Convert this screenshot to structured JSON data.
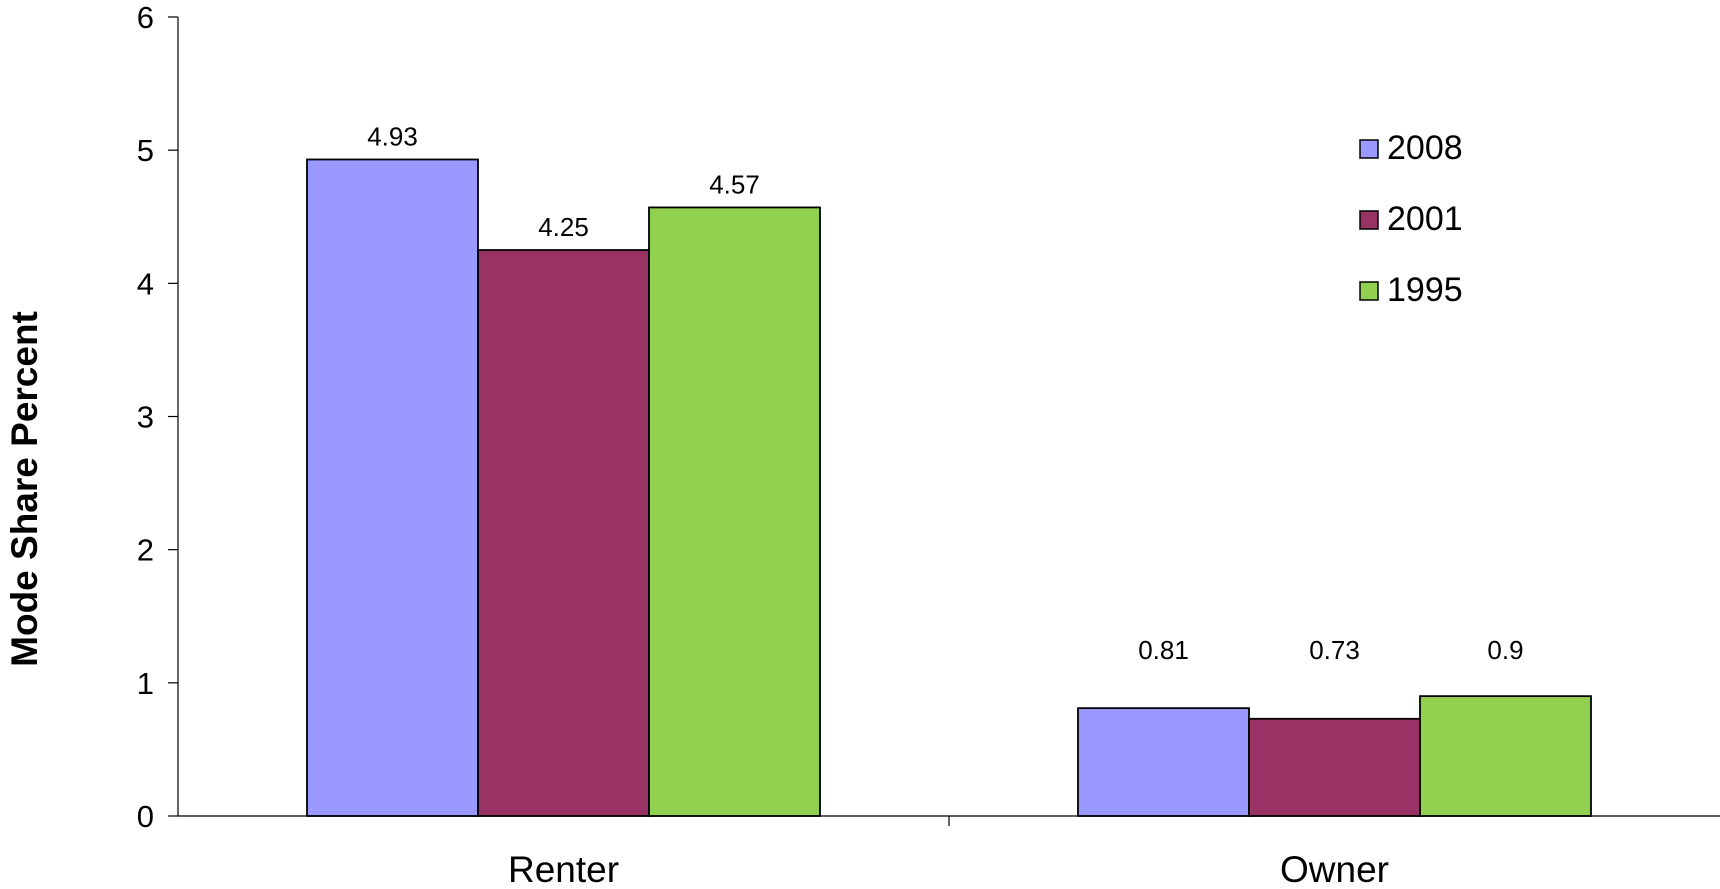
{
  "chart_data": {
    "type": "bar",
    "categories": [
      "Renter",
      "Owner"
    ],
    "series": [
      {
        "name": "2008",
        "values": [
          4.93,
          0.81
        ],
        "color": "#9999ff"
      },
      {
        "name": "2001",
        "values": [
          4.25,
          0.73
        ],
        "color": "#993366"
      },
      {
        "name": "1995",
        "values": [
          4.57,
          0.9
        ],
        "color": "#92d050"
      }
    ],
    "data_labels": [
      [
        "4.93",
        "0.81"
      ],
      [
        "4.25",
        "0.73"
      ],
      [
        "4.57",
        "0.9"
      ]
    ],
    "title": "",
    "xlabel": "",
    "ylabel": "Mode Share Percent",
    "ylim": [
      0,
      6
    ],
    "yticks": [
      "0",
      "1",
      "2",
      "3",
      "4",
      "5",
      "6"
    ],
    "grid": false,
    "legend_position": "top-right"
  }
}
